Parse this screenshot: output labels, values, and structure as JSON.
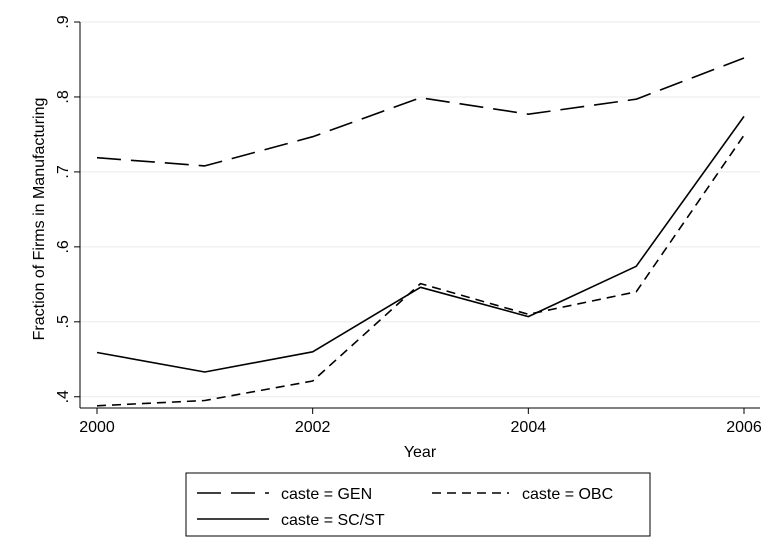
{
  "chart_data": {
    "type": "line",
    "xlabel": "Year",
    "ylabel": "Fraction of Firms in Manufacturing",
    "x": [
      2000,
      2001,
      2002,
      2003,
      2004,
      2005,
      2006
    ],
    "xticks": [
      2000,
      2002,
      2004,
      2006
    ],
    "xtick_labels": [
      "2000",
      "2002",
      "2004",
      "2006"
    ],
    "yticks": [
      0.4,
      0.5,
      0.6,
      0.7,
      0.8,
      0.9
    ],
    "ytick_labels": [
      ".4",
      ".5",
      ".6",
      ".7",
      ".8",
      ".9"
    ],
    "xlim": [
      2000,
      2006
    ],
    "ylim": [
      0.385,
      0.9
    ],
    "grid": true,
    "legend_position": "bottom",
    "series": [
      {
        "name": "caste = GEN",
        "style": "longdash",
        "color": "#000000",
        "values": [
          0.719,
          0.708,
          0.747,
          0.799,
          0.777,
          0.797,
          0.852
        ]
      },
      {
        "name": "caste = OBC",
        "style": "dash",
        "color": "#000000",
        "values": [
          0.388,
          0.395,
          0.421,
          0.551,
          0.51,
          0.54,
          0.749
        ]
      },
      {
        "name": "caste = SC/ST",
        "style": "solid",
        "color": "#000000",
        "values": [
          0.459,
          0.433,
          0.46,
          0.546,
          0.507,
          0.574,
          0.774
        ]
      }
    ]
  }
}
